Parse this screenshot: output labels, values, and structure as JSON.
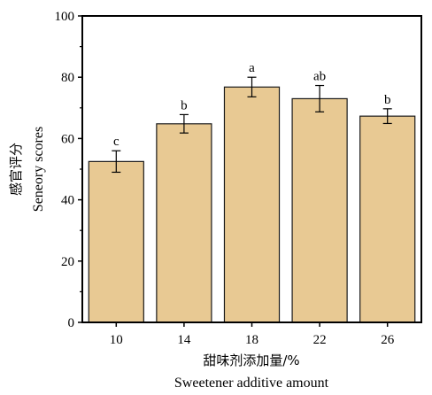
{
  "chart_data": {
    "type": "bar",
    "categories": [
      "10",
      "14",
      "18",
      "22",
      "26"
    ],
    "values": [
      52.5,
      64.8,
      76.8,
      73.0,
      67.3
    ],
    "errors": [
      3.5,
      3.0,
      3.2,
      4.3,
      2.4
    ],
    "significance": [
      "c",
      "b",
      "a",
      "ab",
      "b"
    ],
    "xlabel_cn": "甜味剂添加量/%",
    "xlabel_en": "Sweetener additive amount",
    "ylabel_cn": "感官评分",
    "ylabel_en": "Seneory scores",
    "ylim": [
      0,
      100
    ],
    "yticks": [
      "0",
      "20",
      "40",
      "60",
      "80",
      "100"
    ],
    "colors": {
      "bar_fill": "#e8c993",
      "bar_stroke": "#1a1a1a",
      "axis": "#000000"
    },
    "grid": false,
    "legend": false
  }
}
